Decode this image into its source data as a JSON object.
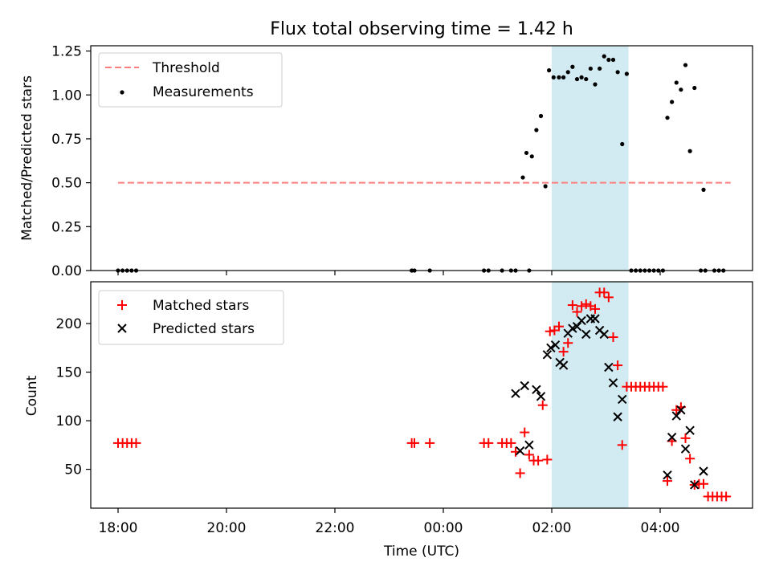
{
  "figure": {
    "title": "Flux total observing time = 1.42 h",
    "xlabel": "Time (UTC)",
    "x_tick_labels": [
      "18:00",
      "20:00",
      "22:00",
      "00:00",
      "02:00",
      "04:00"
    ],
    "shaded_band": {
      "x_start": "02:00",
      "x_end": "03:25",
      "color": "#add8e6"
    }
  },
  "chart_data": [
    {
      "type": "scatter",
      "ylabel": "Matched/Predicted stars",
      "ylim": [
        0,
        1.28
      ],
      "y_ticks": [
        0,
        0.25,
        0.5,
        0.75,
        1.0,
        1.25
      ],
      "y_tick_labels": [
        "0.00",
        "0.25",
        "0.50",
        "0.75",
        "1.00",
        "1.25"
      ],
      "legend": {
        "position": "upper-left",
        "entries": [
          "Threshold",
          "Measurements"
        ]
      },
      "threshold": {
        "name": "Threshold",
        "y": 0.5,
        "x_start": "18:00",
        "x_end": "05:18",
        "color": "#ff7f7f",
        "style": "dashed"
      },
      "series": [
        {
          "name": "Measurements",
          "marker": "dot",
          "color": "#000000",
          "points": [
            [
              "18:00",
              0
            ],
            [
              "18:05",
              0
            ],
            [
              "18:10",
              0
            ],
            [
              "18:15",
              0
            ],
            [
              "18:20",
              0
            ],
            [
              "23:25",
              0
            ],
            [
              "23:28",
              0
            ],
            [
              "23:45",
              0
            ],
            [
              "00:45",
              0
            ],
            [
              "00:50",
              0
            ],
            [
              "01:05",
              0
            ],
            [
              "01:15",
              0
            ],
            [
              "01:20",
              0
            ],
            [
              "01:35",
              0
            ],
            [
              "01:28",
              0.53
            ],
            [
              "01:32",
              0.67
            ],
            [
              "01:38",
              0.65
            ],
            [
              "01:43",
              0.8
            ],
            [
              "01:48",
              0.88
            ],
            [
              "01:53",
              0.48
            ],
            [
              "01:57",
              1.14
            ],
            [
              "02:02",
              1.1
            ],
            [
              "02:08",
              1.1
            ],
            [
              "02:13",
              1.1
            ],
            [
              "02:18",
              1.13
            ],
            [
              "02:23",
              1.16
            ],
            [
              "02:28",
              1.09
            ],
            [
              "02:33",
              1.1
            ],
            [
              "02:38",
              1.09
            ],
            [
              "02:43",
              1.15
            ],
            [
              "02:48",
              1.06
            ],
            [
              "02:53",
              1.15
            ],
            [
              "02:58",
              1.22
            ],
            [
              "03:03",
              1.2
            ],
            [
              "03:08",
              1.2
            ],
            [
              "03:13",
              1.13
            ],
            [
              "03:18",
              0.72
            ],
            [
              "03:23",
              1.12
            ],
            [
              "03:28",
              0
            ],
            [
              "03:33",
              0
            ],
            [
              "03:38",
              0
            ],
            [
              "03:43",
              0
            ],
            [
              "03:48",
              0
            ],
            [
              "03:53",
              0
            ],
            [
              "03:58",
              0
            ],
            [
              "04:03",
              0
            ],
            [
              "04:08",
              0.87
            ],
            [
              "04:13",
              0.96
            ],
            [
              "04:18",
              1.07
            ],
            [
              "04:23",
              1.03
            ],
            [
              "04:28",
              1.17
            ],
            [
              "04:33",
              0.68
            ],
            [
              "04:38",
              1.04
            ],
            [
              "04:48",
              0.46
            ],
            [
              "04:45",
              0
            ],
            [
              "04:50",
              0
            ],
            [
              "05:00",
              0
            ],
            [
              "05:05",
              0
            ],
            [
              "05:10",
              0
            ]
          ]
        }
      ]
    },
    {
      "type": "scatter",
      "ylabel": "Count",
      "ylim": [
        10,
        243
      ],
      "y_ticks": [
        50,
        100,
        150,
        200
      ],
      "y_tick_labels": [
        "50",
        "100",
        "150",
        "200"
      ],
      "legend": {
        "position": "upper-left",
        "entries": [
          "Matched stars",
          "Predicted stars"
        ]
      },
      "series": [
        {
          "name": "Matched stars",
          "marker": "plus",
          "color": "#ff0000",
          "points": [
            [
              "18:00",
              77
            ],
            [
              "18:05",
              77
            ],
            [
              "18:10",
              77
            ],
            [
              "18:15",
              77
            ],
            [
              "18:20",
              77
            ],
            [
              "23:25",
              77
            ],
            [
              "23:28",
              77
            ],
            [
              "23:45",
              77
            ],
            [
              "00:45",
              77
            ],
            [
              "00:50",
              77
            ],
            [
              "01:05",
              77
            ],
            [
              "01:10",
              77
            ],
            [
              "01:15",
              77
            ],
            [
              "01:20",
              68
            ],
            [
              "01:25",
              46
            ],
            [
              "01:30",
              88
            ],
            [
              "01:35",
              65
            ],
            [
              "01:40",
              59
            ],
            [
              "01:45",
              59
            ],
            [
              "01:55",
              60
            ],
            [
              "01:50",
              116
            ],
            [
              "01:58",
              192
            ],
            [
              "02:03",
              193
            ],
            [
              "02:08",
              197
            ],
            [
              "02:13",
              171
            ],
            [
              "02:18",
              180
            ],
            [
              "02:23",
              219
            ],
            [
              "02:28",
              212
            ],
            [
              "02:33",
              218
            ],
            [
              "02:38",
              220
            ],
            [
              "02:43",
              218
            ],
            [
              "02:48",
              215
            ],
            [
              "02:53",
              232
            ],
            [
              "02:58",
              232
            ],
            [
              "03:03",
              227
            ],
            [
              "03:08",
              186
            ],
            [
              "03:13",
              157
            ],
            [
              "03:18",
              75
            ],
            [
              "03:23",
              135
            ],
            [
              "03:28",
              135
            ],
            [
              "03:33",
              135
            ],
            [
              "03:38",
              135
            ],
            [
              "03:43",
              135
            ],
            [
              "03:48",
              135
            ],
            [
              "03:53",
              135
            ],
            [
              "03:58",
              135
            ],
            [
              "04:03",
              135
            ],
            [
              "04:08",
              38
            ],
            [
              "04:13",
              79
            ],
            [
              "04:18",
              111
            ],
            [
              "04:23",
              114
            ],
            [
              "04:28",
              82
            ],
            [
              "04:33",
              61
            ],
            [
              "04:38",
              34
            ],
            [
              "04:43",
              35
            ],
            [
              "04:48",
              35
            ],
            [
              "04:53",
              22
            ],
            [
              "04:58",
              22
            ],
            [
              "05:03",
              22
            ],
            [
              "05:08",
              22
            ],
            [
              "05:13",
              22
            ]
          ]
        },
        {
          "name": "Predicted stars",
          "marker": "x",
          "color": "#000000",
          "points": [
            [
              "01:20",
              128
            ],
            [
              "01:25",
              69
            ],
            [
              "01:30",
              136
            ],
            [
              "01:35",
              75
            ],
            [
              "01:43",
              132
            ],
            [
              "01:48",
              125
            ],
            [
              "01:55",
              168
            ],
            [
              "01:59",
              175
            ],
            [
              "02:04",
              178
            ],
            [
              "02:09",
              160
            ],
            [
              "02:13",
              157
            ],
            [
              "02:18",
              190
            ],
            [
              "02:23",
              195
            ],
            [
              "02:28",
              197
            ],
            [
              "02:33",
              203
            ],
            [
              "02:38",
              189
            ],
            [
              "02:43",
              205
            ],
            [
              "02:48",
              205
            ],
            [
              "02:53",
              193
            ],
            [
              "02:58",
              189
            ],
            [
              "03:03",
              155
            ],
            [
              "03:08",
              139
            ],
            [
              "03:13",
              104
            ],
            [
              "03:18",
              122
            ],
            [
              "04:08",
              44
            ],
            [
              "04:13",
              83
            ],
            [
              "04:18",
              105
            ],
            [
              "04:23",
              111
            ],
            [
              "04:28",
              71
            ],
            [
              "04:33",
              90
            ],
            [
              "04:38",
              34
            ],
            [
              "04:48",
              48
            ]
          ]
        }
      ]
    }
  ]
}
